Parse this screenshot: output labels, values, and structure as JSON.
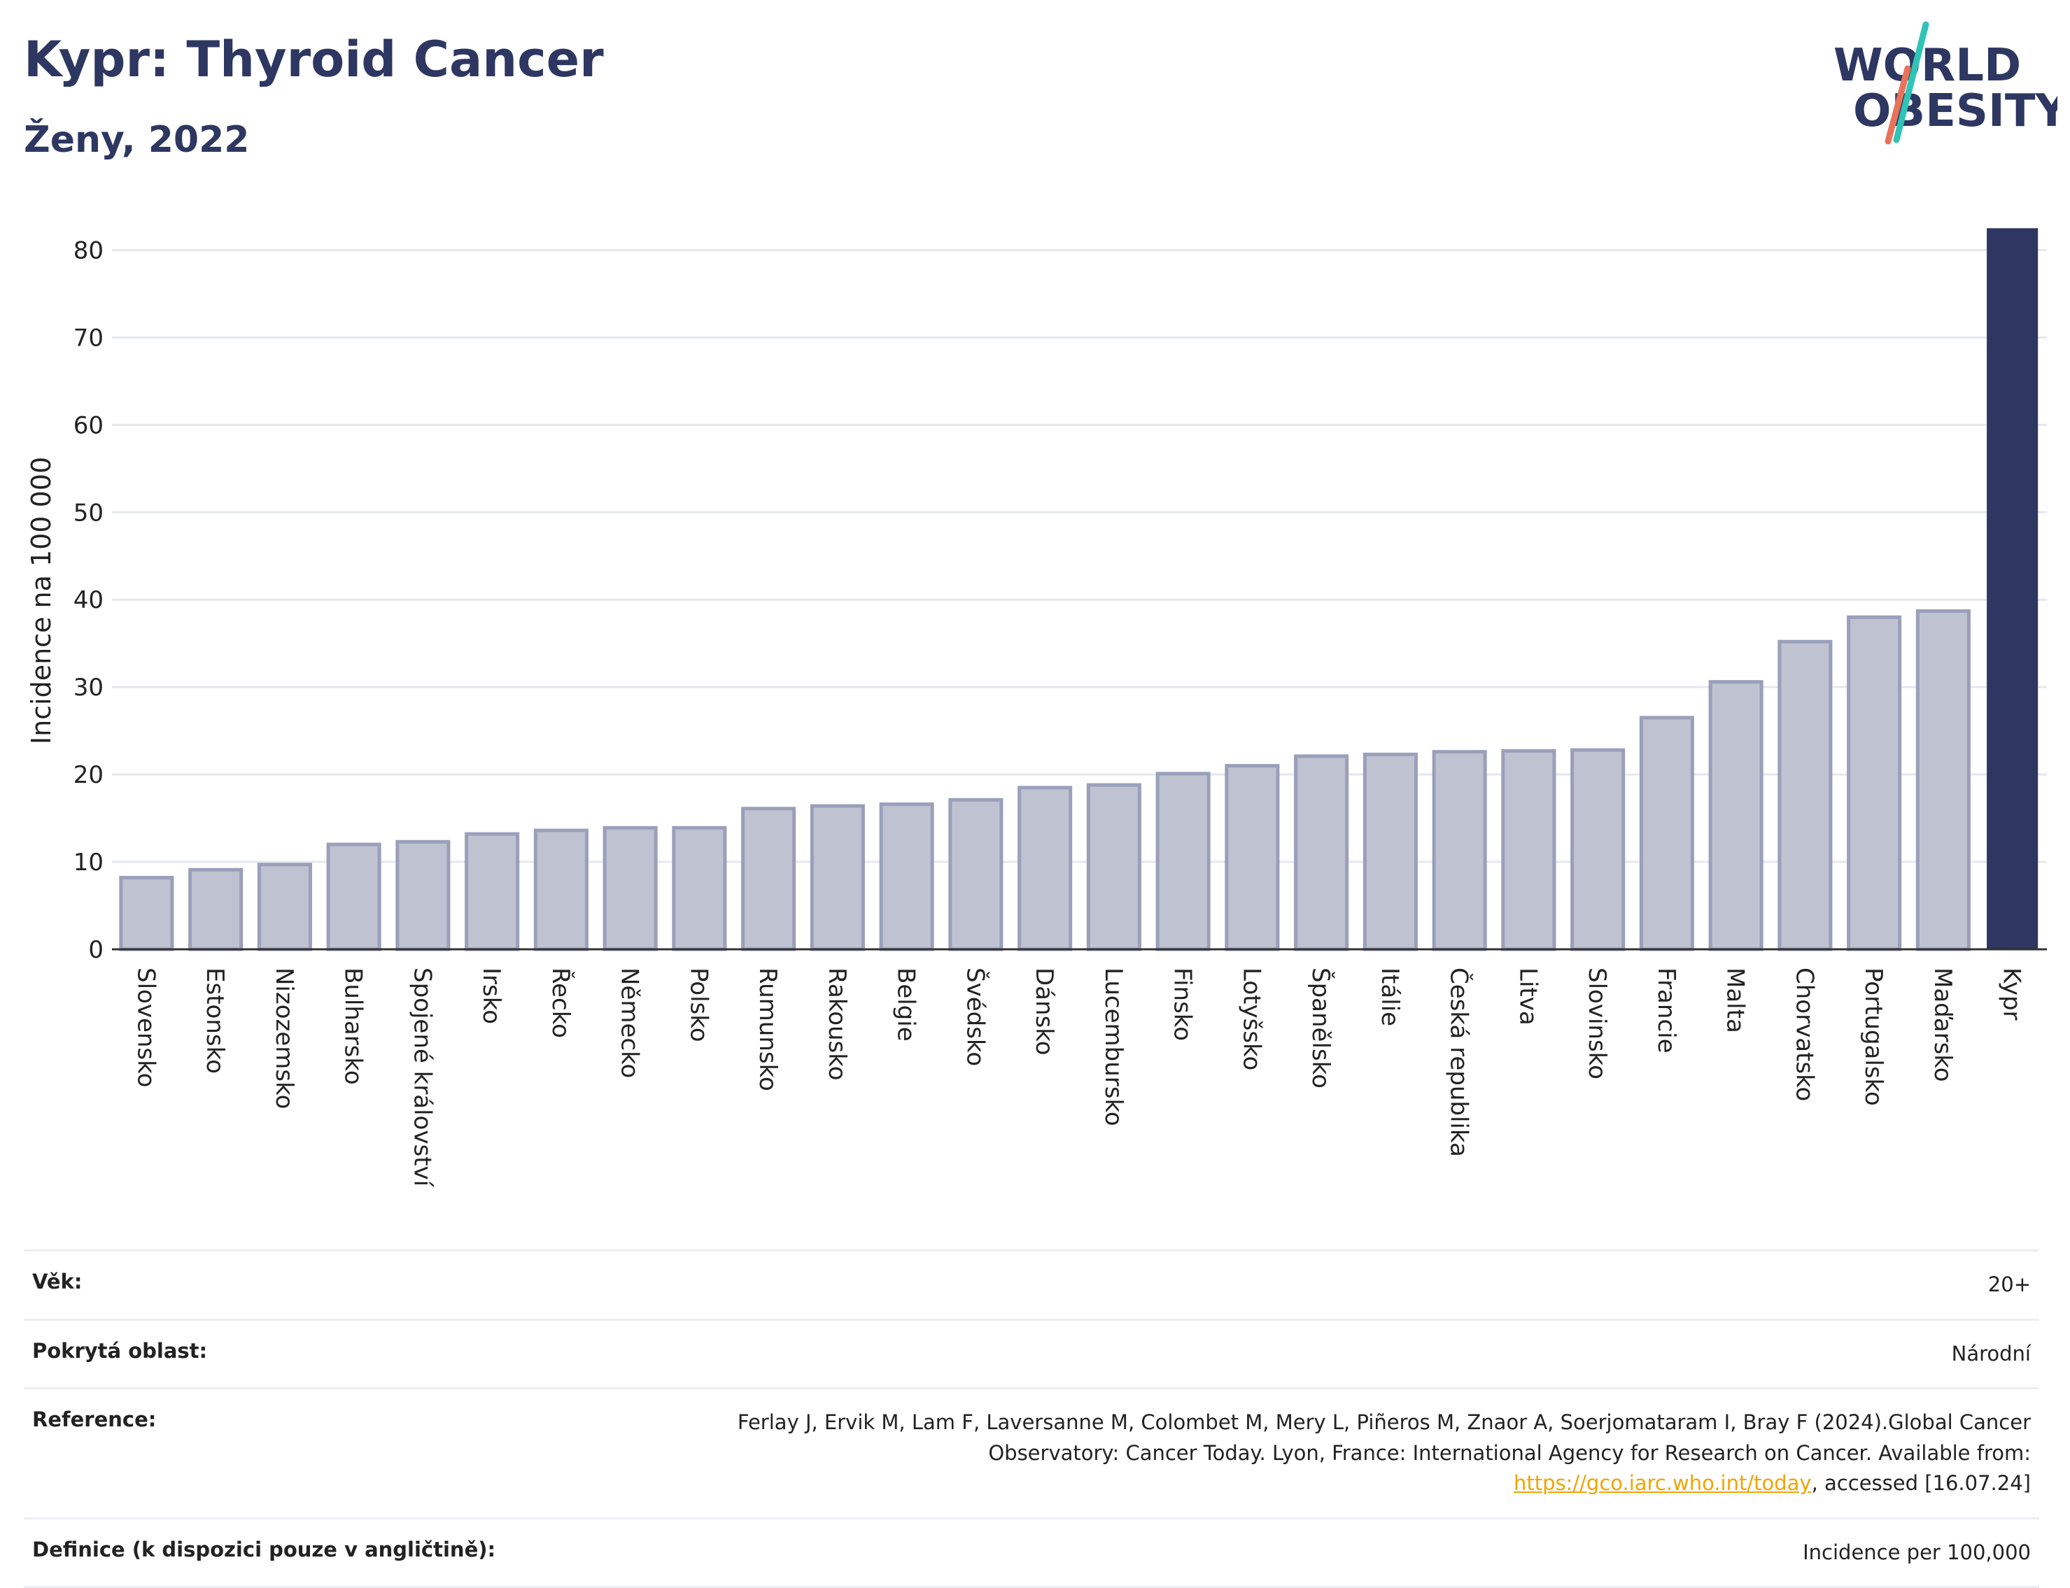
{
  "title": "Kypr: Thyroid Cancer",
  "subtitle": "Ženy, 2022",
  "logo": {
    "line1": "WORLD",
    "line2": "OBESITY"
  },
  "colors": {
    "highlight": "#2d3761",
    "bar": "#bfc2d0",
    "bar_border": "#9a9fba",
    "grid": "#e6e8ef",
    "title": "#2d3761",
    "accent_teal": "#2ec4b6",
    "accent_red": "#e8735a"
  },
  "chart_data": {
    "type": "bar",
    "ylabel": "Incidence na 100 000",
    "xlabel": "",
    "ylim": [
      0,
      83
    ],
    "yticks": [
      0,
      10,
      20,
      30,
      40,
      50,
      60,
      70,
      80
    ],
    "grid": true,
    "highlight": "Kypr",
    "categories": [
      "Slovensko",
      "Estonsko",
      "Nizozemsko",
      "Bulharsko",
      "Spojené království",
      "Irsko",
      "Řecko",
      "Německo",
      "Polsko",
      "Rumunsko",
      "Rakousko",
      "Belgie",
      "Švédsko",
      "Dánsko",
      "Lucembursko",
      "Finsko",
      "Lotyšsko",
      "Španělsko",
      "Itálie",
      "Česká republika",
      "Litva",
      "Slovinsko",
      "Francie",
      "Malta",
      "Chorvatsko",
      "Portugalsko",
      "Maďarsko",
      "Kypr"
    ],
    "values": [
      8.2,
      9.1,
      9.7,
      12.0,
      12.3,
      13.2,
      13.6,
      13.9,
      13.9,
      16.1,
      16.4,
      16.6,
      17.1,
      18.5,
      18.8,
      20.1,
      21.0,
      22.1,
      22.3,
      22.6,
      22.7,
      22.8,
      26.5,
      30.6,
      35.2,
      38.0,
      38.7,
      82.5
    ]
  },
  "info": {
    "age_label": "Věk:",
    "age_value": "20+",
    "area_label": "Pokrytá oblast:",
    "area_value": "Národní",
    "ref_label": "Reference:",
    "ref_text": "Ferlay J, Ervik M, Lam F, Laversanne M, Colombet M, Mery L, Piñeros M, Znaor A, Soerjomataram I, Bray F (2024).Global Cancer Observatory: Cancer Today. Lyon, France: International Agency for Research on Cancer. Available from: ",
    "ref_link": "https://gco.iarc.who.int/today",
    "ref_tail": ", accessed [16.07.24]",
    "def_label": "Definice (k dispozici pouze v angličtině):",
    "def_value": "Incidence per 100,000"
  }
}
